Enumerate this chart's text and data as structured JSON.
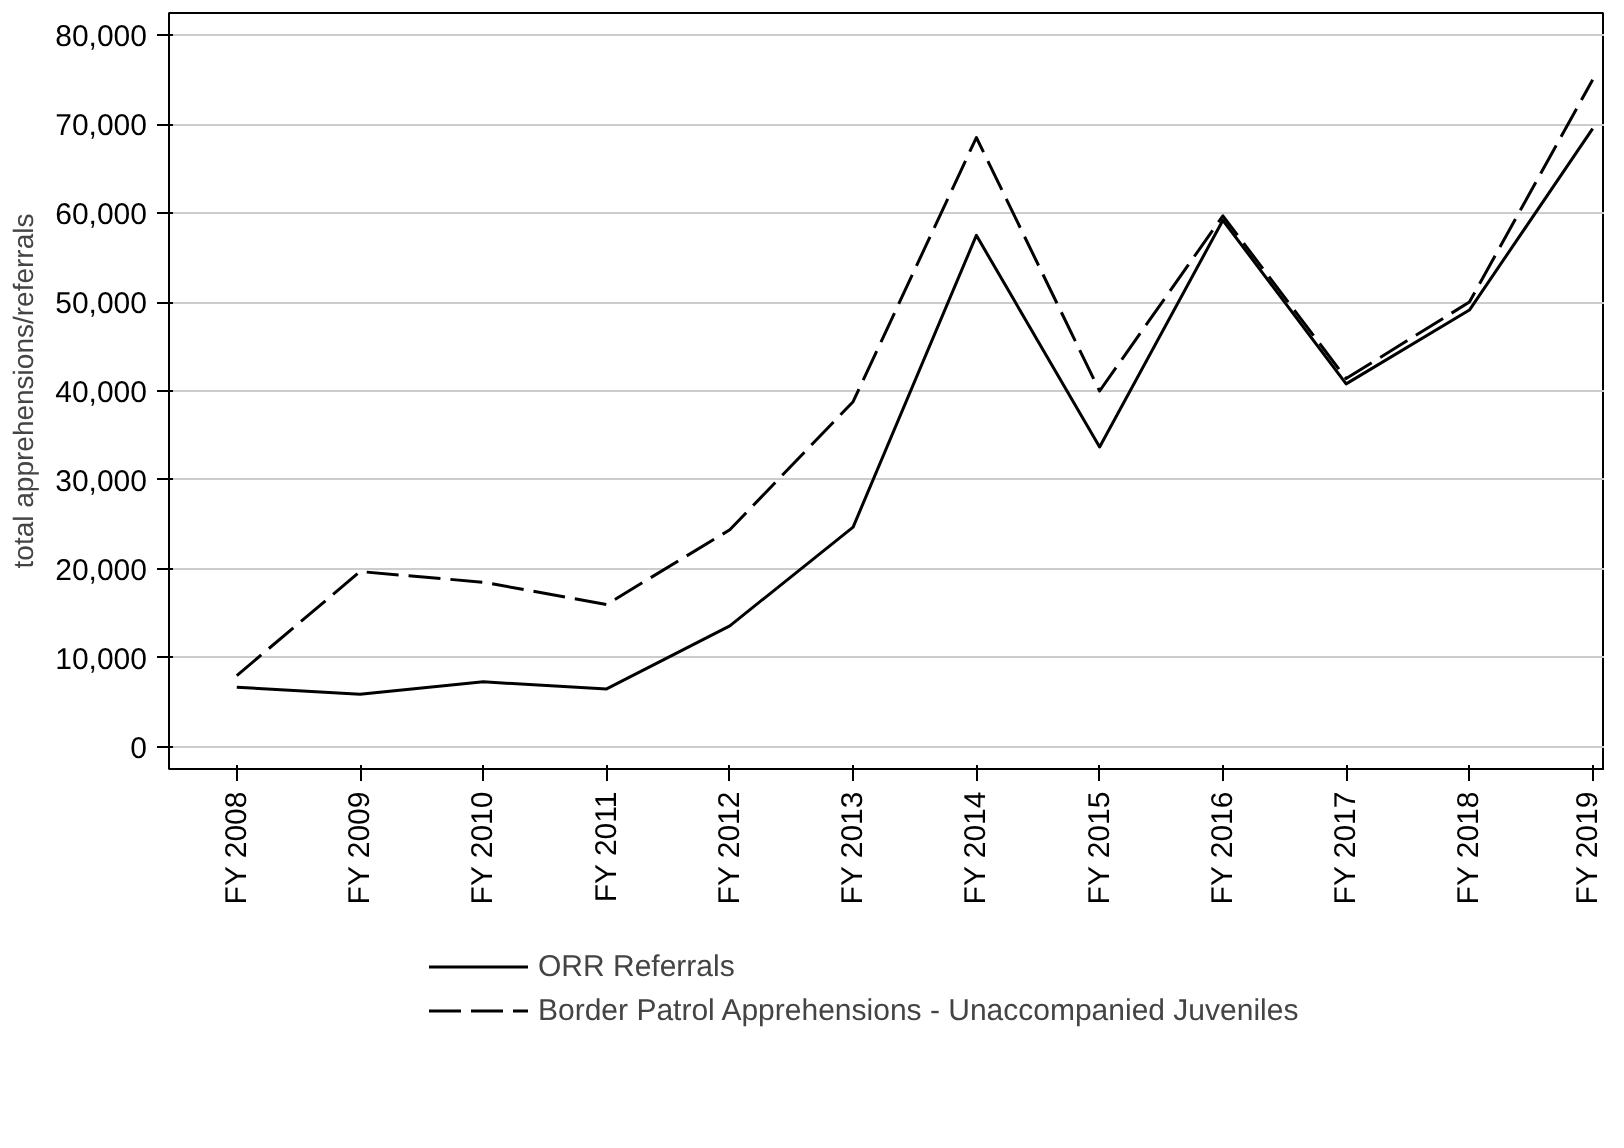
{
  "chart_data": {
    "type": "line",
    "ylabel": "total apprehensions/referrals",
    "categories": [
      "FY 2008",
      "FY 2009",
      "FY 2010",
      "FY 2011",
      "FY 2012",
      "FY 2013",
      "FY 2014",
      "FY 2015",
      "FY 2016",
      "FY 2017",
      "FY 2018",
      "FY 2019"
    ],
    "series": [
      {
        "name": "ORR Referrals",
        "color": "#000000",
        "line_style": "solid",
        "values": [
          6700,
          5900,
          7300,
          6500,
          13600,
          24700,
          57500,
          33700,
          59200,
          40800,
          49100,
          69500
        ]
      },
      {
        "name": "Border Patrol Apprehensions - Unaccompanied Juveniles",
        "color": "#000000",
        "line_style": "dashed",
        "values": [
          8000,
          19700,
          18500,
          16000,
          24400,
          38800,
          68500,
          40000,
          59700,
          41400,
          50000,
          75000
        ]
      }
    ],
    "ylim": [
      -2500,
      82500
    ],
    "yticks": [
      {
        "value": 0,
        "label": "0"
      },
      {
        "value": 10000,
        "label": "10,000"
      },
      {
        "value": 20000,
        "label": "20,000"
      },
      {
        "value": 30000,
        "label": "30,000"
      },
      {
        "value": 40000,
        "label": "40,000"
      },
      {
        "value": 50000,
        "label": "50,000"
      },
      {
        "value": 60000,
        "label": "60,000"
      },
      {
        "value": 70000,
        "label": "70,000"
      },
      {
        "value": 80000,
        "label": "80,000"
      }
    ],
    "grid": "y",
    "legend": "bottom",
    "marker": "none"
  }
}
